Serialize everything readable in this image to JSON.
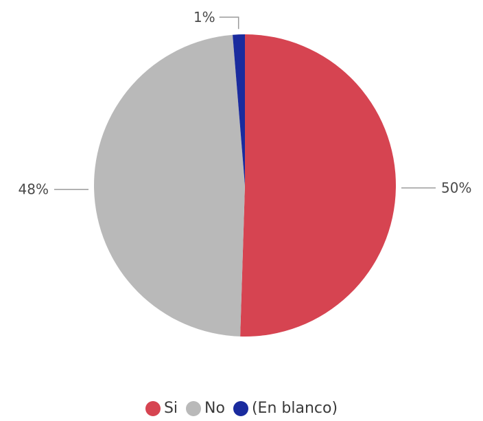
{
  "chart_data": {
    "type": "pie",
    "categories": [
      "Si",
      "No",
      "(En blanco)"
    ],
    "values": [
      50.5,
      48.2,
      1.3
    ],
    "labels": [
      "50%",
      "48%",
      "1%"
    ],
    "colors": [
      "#d64451",
      "#b9b9b9",
      "#1a2b9e"
    ],
    "start_angle_deg": 0,
    "direction": "clockwise",
    "legend_position": "bottom",
    "title": ""
  }
}
